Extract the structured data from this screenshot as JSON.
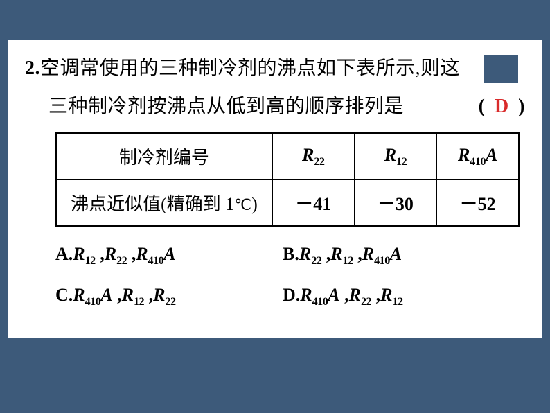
{
  "background_color": "#3d5a7a",
  "content_bg": "#ffffff",
  "answer_color": "#d92b2b",
  "question": {
    "number": "2.",
    "line1_text": "空调常使用的三种制冷剂的沸点如下表所示,则这",
    "line2_text": "三种制冷剂按沸点从低到高的顺序排列是",
    "paren_open": "(",
    "paren_close": ")",
    "answer": "D"
  },
  "table": {
    "header_label": "制冷剂编号",
    "row_label_prefix": "沸点近似值(精确到 1",
    "row_label_unit": "℃",
    "row_label_suffix": ")",
    "cols": [
      {
        "name_base": "R",
        "name_sub": "22",
        "name_extra": "",
        "value": "－41"
      },
      {
        "name_base": "R",
        "name_sub": "12",
        "name_extra": "",
        "value": "－30"
      },
      {
        "name_base": "R",
        "name_sub": "410",
        "name_extra": "A",
        "value": "－52"
      }
    ]
  },
  "options": {
    "A": {
      "prefix": "A.",
      "parts": [
        {
          "b": "R",
          "s": "12",
          "e": ""
        },
        {
          "b": "R",
          "s": "22",
          "e": ""
        },
        {
          "b": "R",
          "s": "410",
          "e": "A"
        }
      ]
    },
    "B": {
      "prefix": "B.",
      "parts": [
        {
          "b": "R",
          "s": "22",
          "e": ""
        },
        {
          "b": "R",
          "s": "12",
          "e": ""
        },
        {
          "b": "R",
          "s": "410",
          "e": "A"
        }
      ]
    },
    "C": {
      "prefix": "C.",
      "parts": [
        {
          "b": "R",
          "s": "410",
          "e": "A"
        },
        {
          "b": "R",
          "s": "12",
          "e": ""
        },
        {
          "b": "R",
          "s": "22",
          "e": ""
        }
      ]
    },
    "D": {
      "prefix": "D.",
      "parts": [
        {
          "b": "R",
          "s": "410",
          "e": "A"
        },
        {
          "b": "R",
          "s": "22",
          "e": ""
        },
        {
          "b": "R",
          "s": "12",
          "e": ""
        }
      ]
    }
  },
  "fonts": {
    "body_size_pt": 21,
    "table_size_pt": 20,
    "option_size_pt": 20
  }
}
